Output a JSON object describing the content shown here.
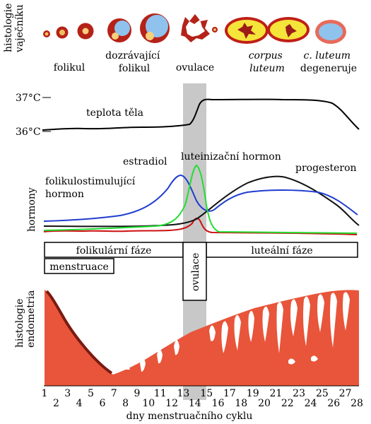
{
  "ovary": {
    "section_label": [
      "histologie",
      "vaječníku"
    ],
    "stages": [
      {
        "lines": [
          "folikul"
        ],
        "italic": false
      },
      {
        "lines": [
          "dozrávající",
          "folikul"
        ],
        "italic": false
      },
      {
        "lines": [
          "ovulace"
        ],
        "italic": false
      },
      {
        "lines": [
          "corpus",
          "luteum"
        ],
        "italic": true
      },
      {
        "lines": [
          "c. luteum",
          "degeneruje"
        ],
        "italic": "first"
      }
    ]
  },
  "temperature": {
    "label": "teplota těla",
    "tick_high": "37°C",
    "tick_low": "36°C"
  },
  "hormones": {
    "axis_label": "hormony",
    "labels": {
      "estradiol": "estradiol",
      "lh": "luteinizační hormon",
      "fsh": [
        "folikulostimulující",
        "hormon"
      ],
      "progesterone": "progesteron"
    },
    "colors": {
      "fsh": "#2233aa",
      "estradiol": "#1f3ccf",
      "lh": "#22dd33",
      "progesterone": "#111111",
      "fsh_red": "#cc1111"
    }
  },
  "phases": {
    "follicular": "folikulární fáze",
    "luteal": "luteální fáze",
    "menstruation": "menstruace",
    "ovulation": "ovulace"
  },
  "endometrium": {
    "section_label": [
      "histologie",
      "endometria"
    ],
    "color": "#e8553a"
  },
  "x_axis": {
    "label": "dny menstruačního cyklu",
    "days": [
      "1",
      "2",
      "3",
      "4",
      "5",
      "6",
      "7",
      "8",
      "9",
      "10",
      "11",
      "12",
      "13",
      "14",
      "15",
      "16",
      "17",
      "18",
      "19",
      "20",
      "21",
      "22",
      "23",
      "24",
      "25",
      "26",
      "27",
      "28"
    ]
  }
}
